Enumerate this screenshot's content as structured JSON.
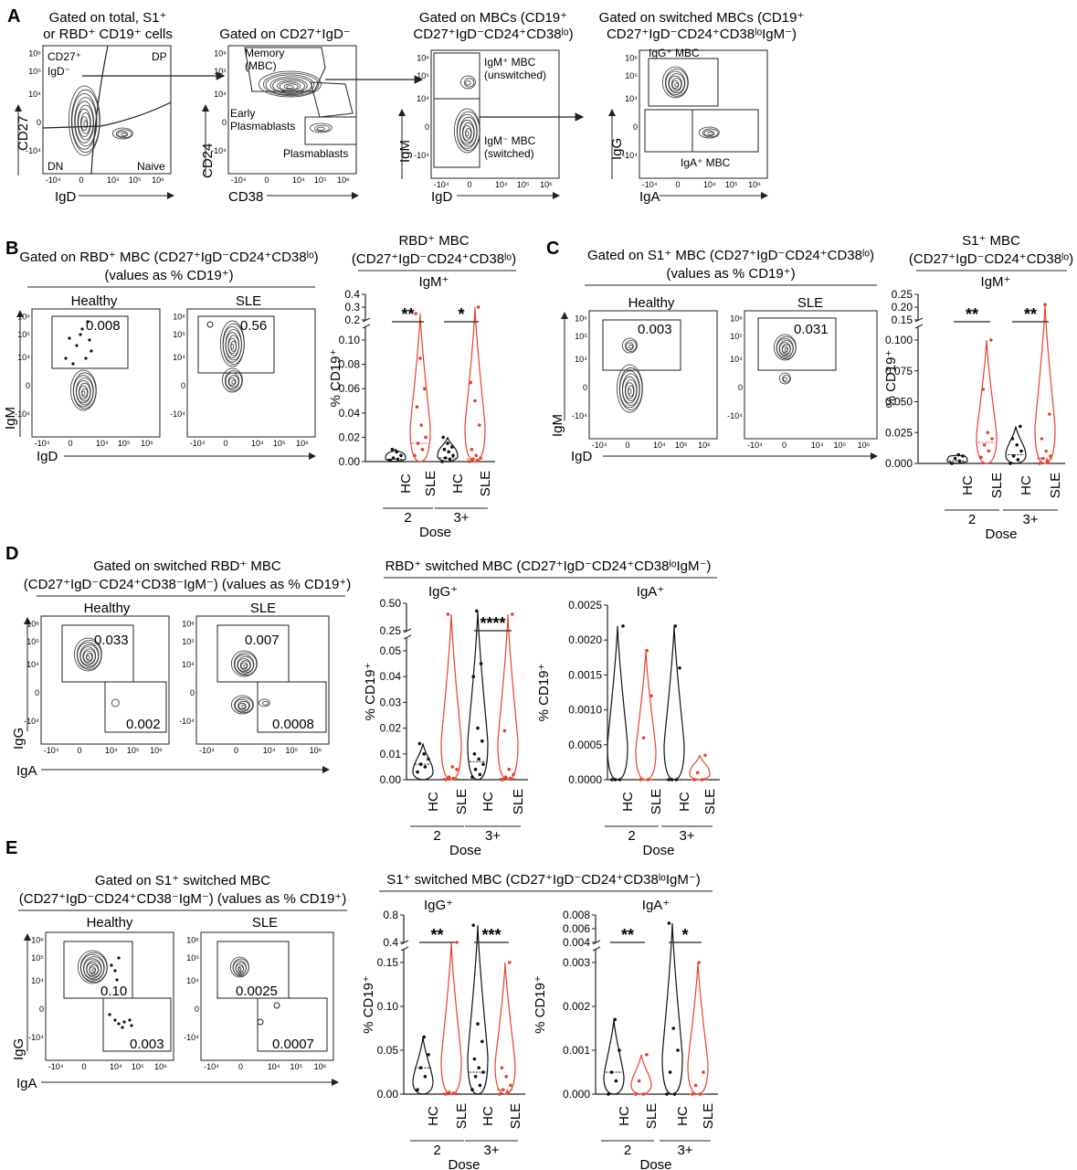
{
  "panel_A": {
    "label": "A",
    "plots": [
      {
        "title": [
          "Gated on total, S1⁺",
          "or RBD⁺ CD19⁺ cells"
        ],
        "xlabel": "IgD",
        "ylabel": "CD27",
        "gates": [
          "CD27⁺",
          "IgD⁻",
          "DP",
          "DN",
          "Naive"
        ]
      },
      {
        "title": [
          "Gated on CD27⁺IgD⁻"
        ],
        "xlabel": "CD38",
        "ylabel": "CD24",
        "gates": [
          "Memory",
          "(MBC)",
          "Early",
          "Plasmablasts",
          "Plasmablasts"
        ]
      },
      {
        "title": [
          "Gated on MBCs (CD19⁺",
          "CD27⁺IgD⁻CD24⁺CD38ˡᵒ)"
        ],
        "xlabel": "IgD",
        "ylabel": "IgM",
        "gates": [
          "IgM⁺ MBC",
          "(unswitched)",
          "IgM⁻ MBC",
          "(switched)"
        ]
      },
      {
        "title": [
          "Gated on switched MBCs (CD19⁺",
          "CD27⁺IgD⁻CD24⁺CD38ˡᵒIgM⁻)"
        ],
        "xlabel": "IgA",
        "ylabel": "IgG",
        "gates": [
          "IgG⁺ MBC",
          "IgA⁺ MBC"
        ]
      }
    ]
  },
  "panel_B": {
    "label": "B",
    "flow_title": [
      "Gated on RBD⁺ MBC (CD27⁺IgD⁻CD24⁺CD38ˡᵒ)",
      "(values as % CD19⁺)"
    ],
    "healthy": "Healthy",
    "sle": "SLE",
    "healthy_value": "0.008",
    "sle_value": "0.56",
    "xlabel": "IgD",
    "ylabel": "IgM",
    "violin_title": [
      "RBD⁺ MBC",
      "(CD27⁺IgD⁻CD24⁺CD38ˡᵒ)"
    ],
    "violin_subtitle": "IgM⁺"
  },
  "panel_C": {
    "label": "C",
    "flow_title": [
      "Gated on S1⁺ MBC (CD27⁺IgD⁻CD24⁺CD38ˡᵒ)",
      "(values as % CD19⁺)"
    ],
    "healthy": "Healthy",
    "sle": "SLE",
    "healthy_value": "0.003",
    "sle_value": "0.031",
    "xlabel": "IgD",
    "ylabel": "IgM",
    "violin_title": [
      "S1⁺ MBC",
      "(CD27⁺IgD⁻CD24⁺CD38ˡᵒ)"
    ],
    "violin_subtitle": "IgM⁺"
  },
  "panel_D": {
    "label": "D",
    "flow_title": [
      "Gated on switched RBD⁺ MBC",
      "(CD27⁺IgD⁻CD24⁺CD38⁻IgM⁻) (values as % CD19⁺)"
    ],
    "healthy": "Healthy",
    "sle": "SLE",
    "healthy_values": [
      "0.033",
      "0.002"
    ],
    "sle_values": [
      "0.007",
      "0.0008"
    ],
    "xlabel": "IgA",
    "ylabel": "IgG",
    "violin_title": "RBD⁺ switched MBC (CD27⁺IgD⁻CD24⁺CD38ˡᵒIgM⁻)",
    "sub_left": "IgG⁺",
    "sub_right": "IgA⁺"
  },
  "panel_E": {
    "label": "E",
    "flow_title": [
      "Gated on S1⁺ switched MBC",
      "(CD27⁺IgD⁻CD24⁺CD38⁻IgM⁻) (values as % CD19⁺)"
    ],
    "healthy": "Healthy",
    "sle": "SLE",
    "healthy_values": [
      "0.10",
      "0.003"
    ],
    "sle_values": [
      "0.0025",
      "0.0007"
    ],
    "xlabel": "IgA",
    "ylabel": "IgG",
    "violin_title": "S1⁺ switched MBC (CD27⁺IgD⁻CD24⁺CD38ˡᵒIgM⁻)",
    "sub_left": "IgG⁺",
    "sub_right": "IgA⁺"
  },
  "flow_ticks": {
    "x": [
      "-10⁴",
      "0",
      "10⁴",
      "10⁵",
      "10⁶"
    ],
    "y": [
      "10⁶",
      "10⁵",
      "10⁴",
      "0",
      "-10⁴"
    ]
  },
  "violin_common": {
    "ylabel": "% CD19⁺",
    "groups": [
      "HC",
      "SLE",
      "HC",
      "SLE"
    ],
    "doses": [
      "2",
      "3+"
    ],
    "dose_label": "Dose"
  },
  "colors": {
    "hc": "#111111",
    "sle": "#e8402c"
  },
  "chart_data": [
    {
      "id": "B-IgM",
      "type": "violin",
      "ylim_lower": [
        0,
        0.1
      ],
      "ylim_upper": [
        0.2,
        0.4
      ],
      "yticks_lower": [
        "0.00",
        "0.02",
        "0.04",
        "0.06",
        "0.08",
        "0.10"
      ],
      "yticks_upper": [
        "0.2",
        "0.3",
        "0.4"
      ],
      "groups": [
        {
          "name": "HC",
          "dose": "2",
          "median": 0.002,
          "max": 0.01,
          "points": [
            0.001,
            0.002,
            0.003,
            0.005,
            0.008,
            0.01
          ]
        },
        {
          "name": "SLE",
          "dose": "2",
          "median": 0.015,
          "max": 0.25,
          "points": [
            0.005,
            0.01,
            0.015,
            0.02,
            0.03,
            0.045,
            0.06,
            0.085,
            0.25
          ]
        },
        {
          "name": "HC",
          "dose": "3+",
          "median": 0.003,
          "max": 0.02,
          "points": [
            0.0,
            0.002,
            0.003,
            0.005,
            0.008,
            0.01,
            0.012,
            0.015,
            0.02
          ]
        },
        {
          "name": "SLE",
          "dose": "3+",
          "median": 0.002,
          "max": 0.3,
          "points": [
            0.0,
            0.001,
            0.002,
            0.003,
            0.005,
            0.01,
            0.03,
            0.05,
            0.065,
            0.3
          ]
        }
      ],
      "significance": [
        {
          "pair": [
            0,
            1
          ],
          "label": "**"
        },
        {
          "pair": [
            2,
            3
          ],
          "label": "*"
        }
      ]
    },
    {
      "id": "C-IgM",
      "type": "violin",
      "ylim_lower": [
        0,
        0.1
      ],
      "ylim_upper": [
        0.15,
        0.25
      ],
      "yticks_lower": [
        "0.000",
        "0.025",
        "0.050",
        "0.075",
        "0.100"
      ],
      "yticks_upper": [
        "0.15",
        "0.20",
        "0.25"
      ],
      "groups": [
        {
          "name": "HC",
          "dose": "2",
          "median": 0.002,
          "max": 0.007,
          "points": [
            0.0,
            0.002,
            0.004,
            0.006,
            0.007
          ]
        },
        {
          "name": "SLE",
          "dose": "2",
          "median": 0.017,
          "max": 0.1,
          "points": [
            0.005,
            0.01,
            0.015,
            0.02,
            0.025,
            0.06,
            0.1
          ]
        },
        {
          "name": "HC",
          "dose": "3+",
          "median": 0.007,
          "max": 0.03,
          "points": [
            0.0,
            0.003,
            0.006,
            0.01,
            0.015,
            0.02,
            0.03
          ]
        },
        {
          "name": "SLE",
          "dose": "3+",
          "median": 0.004,
          "max": 0.21,
          "points": [
            0.0,
            0.002,
            0.004,
            0.006,
            0.01,
            0.02,
            0.04,
            0.21
          ]
        }
      ],
      "significance": [
        {
          "pair": [
            0,
            1
          ],
          "label": "**"
        },
        {
          "pair": [
            2,
            3
          ],
          "label": "**"
        }
      ]
    },
    {
      "id": "D-IgG",
      "type": "violin",
      "ylim_lower": [
        0,
        0.05
      ],
      "ylim_upper": [
        0.25,
        0.5
      ],
      "yticks_lower": [
        "0.00",
        "0.01",
        "0.02",
        "0.03",
        "0.04",
        "0.05"
      ],
      "yticks_upper": [
        "0.25",
        "0.50"
      ],
      "groups": [
        {
          "name": "HC",
          "dose": "2",
          "median": 0.006,
          "max": 0.014,
          "points": [
            0.003,
            0.005,
            0.006,
            0.008,
            0.01,
            0.014
          ]
        },
        {
          "name": "SLE",
          "dose": "2",
          "median": 0.0005,
          "max": 0.4,
          "points": [
            0.0,
            0.0005,
            0.001,
            0.004,
            0.005,
            0.4
          ]
        },
        {
          "name": "HC",
          "dose": "3+",
          "median": 0.007,
          "max": 0.43,
          "points": [
            0.001,
            0.002,
            0.004,
            0.006,
            0.008,
            0.01,
            0.015,
            0.02,
            0.04,
            0.045,
            0.43
          ]
        },
        {
          "name": "SLE",
          "dose": "3+",
          "median": 0.0005,
          "max": 0.4,
          "points": [
            0.0,
            0.0005,
            0.001,
            0.002,
            0.004,
            0.019,
            0.4
          ]
        }
      ],
      "significance": [
        {
          "pair": [
            2,
            3
          ],
          "label": "****"
        }
      ]
    },
    {
      "id": "D-IgA",
      "type": "violin",
      "ylim": [
        0,
        0.0025
      ],
      "yticks": [
        "0.0000",
        "0.0005",
        "0.0010",
        "0.0015",
        "0.0020",
        "0.0025"
      ],
      "groups": [
        {
          "name": "HC",
          "dose": "2",
          "median": 0.0,
          "max": 0.0022,
          "points": [
            0.0,
            0.0,
            0.0,
            0.0022
          ]
        },
        {
          "name": "SLE",
          "dose": "2",
          "median": 0.0,
          "max": 0.00185,
          "points": [
            0.0,
            0.0,
            0.0006,
            0.0012,
            0.00185
          ]
        },
        {
          "name": "HC",
          "dose": "3+",
          "median": 0.0,
          "max": 0.0022,
          "points": [
            0.0,
            0.0,
            0.0,
            0.0016,
            0.0022
          ]
        },
        {
          "name": "SLE",
          "dose": "3+",
          "median": 0.0,
          "max": 0.00035,
          "points": [
            0.0,
            0.0,
            0.0001,
            0.00035
          ]
        }
      ],
      "significance": []
    },
    {
      "id": "E-IgG",
      "type": "violin",
      "ylim_lower": [
        0,
        0.15
      ],
      "ylim_upper": [
        0.4,
        0.8
      ],
      "yticks_lower": [
        "0.00",
        "0.05",
        "0.10",
        "0.15"
      ],
      "yticks_upper": [
        "0.4",
        "0.8"
      ],
      "groups": [
        {
          "name": "HC",
          "dose": "2",
          "median": 0.03,
          "max": 0.065,
          "points": [
            0.005,
            0.02,
            0.03,
            0.045,
            0.065
          ]
        },
        {
          "name": "SLE",
          "dose": "2",
          "median": 0.001,
          "max": 0.38,
          "points": [
            0.0,
            0.001,
            0.002,
            0.38
          ]
        },
        {
          "name": "HC",
          "dose": "3+",
          "median": 0.025,
          "max": 0.65,
          "points": [
            0.005,
            0.01,
            0.02,
            0.025,
            0.03,
            0.04,
            0.06,
            0.08,
            0.65
          ]
        },
        {
          "name": "SLE",
          "dose": "3+",
          "median": 0.005,
          "max": 0.15,
          "points": [
            0.0,
            0.002,
            0.005,
            0.01,
            0.02,
            0.03,
            0.15
          ]
        }
      ],
      "significance": [
        {
          "pair": [
            0,
            1
          ],
          "label": "**"
        },
        {
          "pair": [
            2,
            3
          ],
          "label": "***"
        }
      ]
    },
    {
      "id": "E-IgA",
      "type": "violin",
      "ylim_lower": [
        0,
        0.003
      ],
      "ylim_upper": [
        0.004,
        0.008
      ],
      "yticks_lower": [
        "0.000",
        "0.001",
        "0.002",
        "0.003"
      ],
      "yticks_upper": [
        "0.004",
        "0.006",
        "0.008"
      ],
      "groups": [
        {
          "name": "HC",
          "dose": "2",
          "median": 0.0005,
          "max": 0.0017,
          "points": [
            0.0,
            0.0003,
            0.0005,
            0.001,
            0.0017
          ]
        },
        {
          "name": "SLE",
          "dose": "2",
          "median": 0.0,
          "max": 0.0009,
          "points": [
            0.0,
            0.0,
            0.0003,
            0.0009
          ]
        },
        {
          "name": "HC",
          "dose": "3+",
          "median": 0.0,
          "max": 0.0068,
          "points": [
            0.0,
            0.0,
            0.0005,
            0.001,
            0.0015,
            0.0068
          ]
        },
        {
          "name": "SLE",
          "dose": "3+",
          "median": 0.0,
          "max": 0.003,
          "points": [
            0.0,
            0.0,
            0.0002,
            0.0005,
            0.003
          ]
        }
      ],
      "significance": [
        {
          "pair": [
            0,
            1
          ],
          "label": "**"
        },
        {
          "pair": [
            2,
            3
          ],
          "label": "*"
        }
      ]
    }
  ]
}
